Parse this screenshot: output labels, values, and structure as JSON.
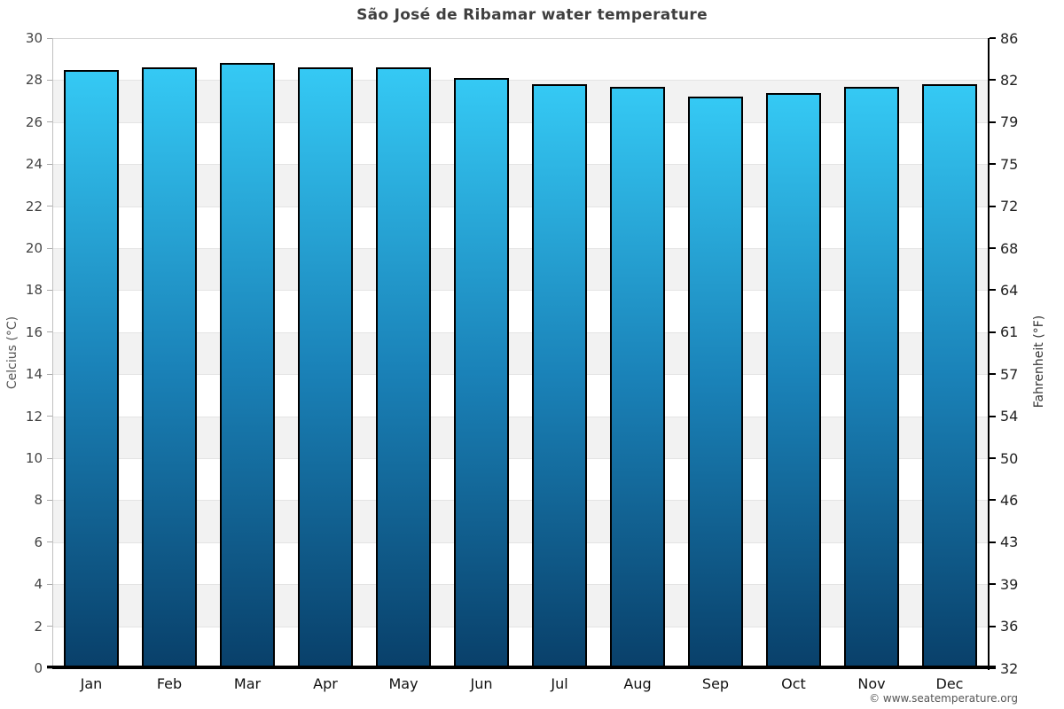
{
  "page": {
    "copyright": "© www.seatemperature.org"
  },
  "chart_data": {
    "type": "bar",
    "title": "São José de Ribamar water temperature",
    "categories": [
      "Jan",
      "Feb",
      "Mar",
      "Apr",
      "May",
      "Jun",
      "Jul",
      "Aug",
      "Sep",
      "Oct",
      "Nov",
      "Dec"
    ],
    "values": [
      28.5,
      28.6,
      28.8,
      28.6,
      28.6,
      28.1,
      27.8,
      27.7,
      27.2,
      27.4,
      27.7,
      27.8
    ],
    "xlabel": "",
    "ylabel_left": "Celcius (°C)",
    "ylabel_right": "Fahrenheit (°F)",
    "ylim_celsius": [
      0,
      30
    ],
    "celsius_ticks_top_to_bottom": [
      30,
      28,
      26,
      24,
      22,
      20,
      18,
      16,
      14,
      12,
      10,
      8,
      6,
      4,
      2,
      0
    ],
    "fahrenheit_ticks_top_to_bottom": [
      86,
      82,
      79,
      75,
      72,
      68,
      64,
      61,
      57,
      54,
      50,
      46,
      43,
      39,
      36,
      32
    ],
    "grid": "alternating horizontal bands every 2°C",
    "legend": "none",
    "style": {
      "bar_gradient_top": "#35c9f4",
      "bar_gradient_mid": "#1a82b8",
      "bar_gradient_bottom": "#09406a",
      "bar_border": "#000000",
      "band_color": "#f2f2f2",
      "band_alt_color": "#ffffff"
    }
  }
}
